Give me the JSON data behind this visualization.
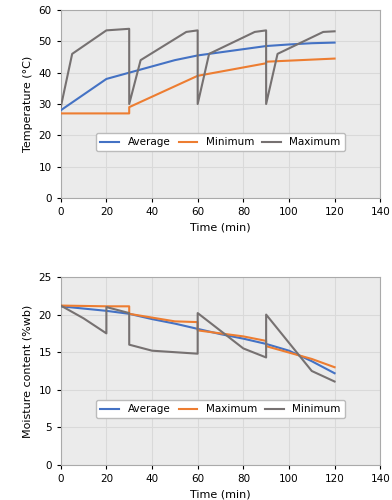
{
  "temp_avg_x": [
    0,
    10,
    20,
    30,
    40,
    50,
    60,
    70,
    80,
    90,
    100,
    110,
    120
  ],
  "temp_avg_y": [
    28,
    33,
    38,
    40,
    42,
    44,
    45.5,
    46.5,
    47.5,
    48.5,
    49.0,
    49.4,
    49.6
  ],
  "temp_min_x": [
    0,
    29.99,
    30,
    59.99,
    60,
    89.99,
    90,
    120
  ],
  "temp_min_y": [
    27,
    27,
    29,
    39,
    39,
    43,
    43.5,
    44.5
  ],
  "temp_max_x": [
    0,
    5,
    20,
    29.99,
    30,
    35,
    55,
    59.99,
    60,
    65,
    85,
    89.99,
    90,
    95,
    115,
    120
  ],
  "temp_max_y": [
    29,
    46,
    53.5,
    54,
    30,
    44,
    53,
    53.5,
    30,
    46,
    53,
    53.5,
    30,
    46,
    53,
    53.2
  ],
  "moist_avg_x": [
    0,
    10,
    20,
    30,
    40,
    50,
    60,
    70,
    80,
    90,
    100,
    110,
    120
  ],
  "moist_avg_y": [
    21.1,
    20.8,
    20.5,
    20.1,
    19.4,
    18.8,
    18.1,
    17.4,
    16.8,
    16.1,
    15.2,
    13.8,
    12.2
  ],
  "moist_max_x": [
    0,
    20,
    29.99,
    30,
    50,
    59.99,
    60,
    80,
    89.99,
    90,
    110,
    120
  ],
  "moist_max_y": [
    21.2,
    21.1,
    21.1,
    20.1,
    19.1,
    19.0,
    17.9,
    17.1,
    16.5,
    15.8,
    14.1,
    13.0
  ],
  "moist_min_x": [
    0,
    10,
    19.99,
    20,
    29.99,
    30,
    40,
    59.99,
    60,
    80,
    89.99,
    90,
    110,
    120
  ],
  "moist_min_y": [
    21.2,
    19.5,
    17.5,
    21.0,
    20.2,
    16.0,
    15.2,
    14.8,
    20.2,
    15.5,
    14.3,
    20.0,
    12.5,
    11.1
  ],
  "color_avg": "#4472C4",
  "color_min_temp": "#ED7D31",
  "color_max_temp": "#767171",
  "color_max_moist": "#ED7D31",
  "color_min_moist": "#767171",
  "temp_ylim": [
    0,
    60
  ],
  "temp_yticks": [
    0,
    10,
    20,
    30,
    40,
    50,
    60
  ],
  "moist_ylim": [
    0,
    25
  ],
  "moist_yticks": [
    0,
    5,
    10,
    15,
    20,
    25
  ],
  "xlim": [
    0,
    140
  ],
  "xticks": [
    0,
    20,
    40,
    60,
    80,
    100,
    120,
    140
  ],
  "xlabel": "Time (min)",
  "temp_ylabel": "Temperature (°C)",
  "moist_ylabel": "Moisture content (%wb)",
  "grid_color": "#D9D9D9",
  "bg_color": "#EBEBEB"
}
